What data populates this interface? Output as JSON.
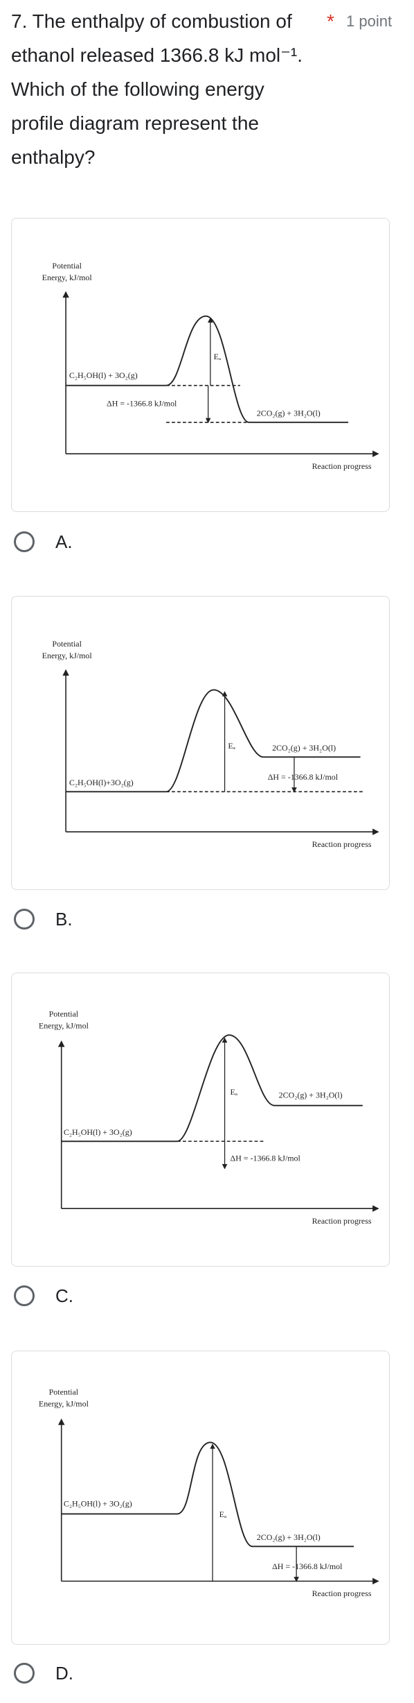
{
  "question": {
    "text": "7. The enthalpy of combustion of ethanol released 1366.8 kJ mol⁻¹. Which of the following energy profile diagram represent the enthalpy?",
    "required": "*",
    "points": "1 point"
  },
  "options": [
    {
      "label": "A.",
      "diagram": {
        "y_axis": [
          "Potential",
          "Energy, kJ/mol"
        ],
        "x_axis": "Reaction progress",
        "reactants": "C₂H₅OH(l) + 3O₂(g)",
        "products": "2CO₂(g) + 3H₂O(l)",
        "delta_h": "ΔH = -1366.8 kJ/mol",
        "ea": "Eₐ"
      }
    },
    {
      "label": "B.",
      "diagram": {
        "y_axis": [
          "Potential",
          "Energy, kJ/mol"
        ],
        "x_axis": "Reaction progress",
        "reactants": "C₂H₅OH(l)+3O₂(g)",
        "products": "2CO₂(g) + 3H₂O(l)",
        "delta_h": "ΔH = -1366.8 kJ/mol",
        "ea": "Eₐ"
      }
    },
    {
      "label": "C.",
      "diagram": {
        "y_axis": [
          "Potential",
          "Energy, kJ/mol"
        ],
        "x_axis": "Reaction progress",
        "reactants": "C₂H₅OH(l) + 3O₂(g)",
        "products": "2CO₂(g) + 3H₂O(l)",
        "delta_h": "ΔH = -1366.8 kJ/mol",
        "ea": "Eₐ"
      }
    },
    {
      "label": "D.",
      "diagram": {
        "y_axis": [
          "Potential",
          "Energy, kJ/mol"
        ],
        "x_axis": "Reaction progress",
        "reactants": "C₂H₅OH(l) + 3O₂(g)",
        "products": "2CO₂(g) + 3H₂O(l)",
        "delta_h": "ΔH = -1366.8 kJ/mol",
        "ea": "Eₐ"
      }
    }
  ]
}
